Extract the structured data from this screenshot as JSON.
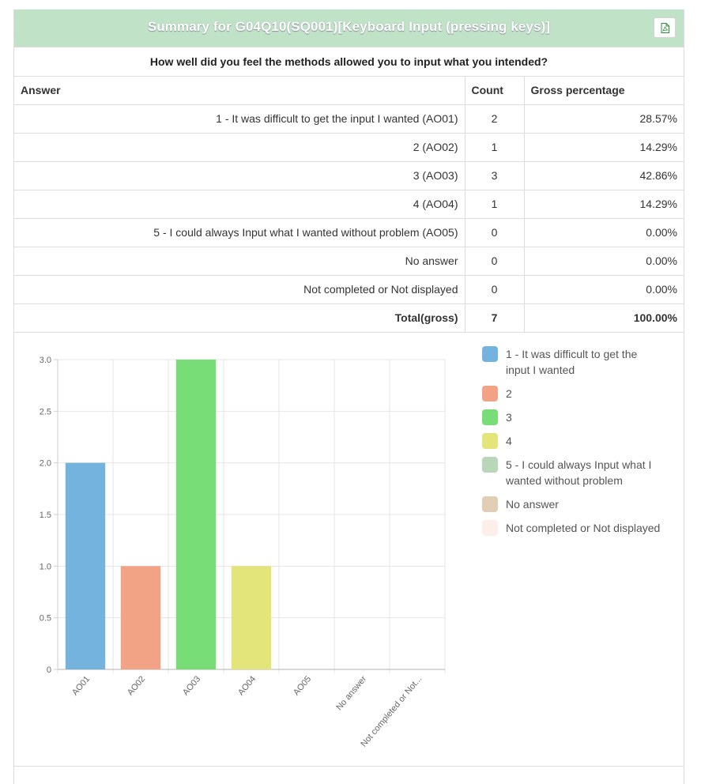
{
  "header": {
    "title": "Summary for G04Q10(SQ001)[Keyboard Input (pressing keys)]"
  },
  "question": "How well did you feel the methods allowed you to input what you intended?",
  "table": {
    "columns": [
      "Answer",
      "Count",
      "Gross percentage"
    ],
    "rows": [
      {
        "answer": "1 - It was difficult to get the input I wanted (AO01)",
        "count": "2",
        "pct": "28.57%"
      },
      {
        "answer": "2 (AO02)",
        "count": "1",
        "pct": "14.29%"
      },
      {
        "answer": "3 (AO03)",
        "count": "3",
        "pct": "42.86%"
      },
      {
        "answer": "4 (AO04)",
        "count": "1",
        "pct": "14.29%"
      },
      {
        "answer": "5 - I could always Input what I wanted without problem (AO05)",
        "count": "0",
        "pct": "0.00%"
      },
      {
        "answer": "No answer",
        "count": "0",
        "pct": "0.00%"
      },
      {
        "answer": "Not completed or Not displayed",
        "count": "0",
        "pct": "0.00%"
      }
    ],
    "total": {
      "label": "Total(gross)",
      "count": "7",
      "pct": "100.00%"
    }
  },
  "chart_data": {
    "type": "bar",
    "categories": [
      "AO01",
      "AO02",
      "AO03",
      "AO04",
      "AO05",
      "No answer",
      "Not completed or Not..."
    ],
    "values": [
      2,
      1,
      3,
      1,
      0,
      0,
      0
    ],
    "colors": [
      "#74b3de",
      "#f2a386",
      "#78dd76",
      "#e3e479",
      "#b9d6b9",
      "#e2cdb5",
      "#fcefe9"
    ],
    "ylim": [
      0,
      3
    ],
    "yticks": [
      "0",
      "0.5",
      "1.0",
      "1.5",
      "2.0",
      "2.5",
      "3.0"
    ],
    "grid": true,
    "legend_position": "right",
    "legend": [
      "1 - It was difficult to get the input I wanted",
      "2",
      "3",
      "4",
      "5 - I could always Input what I wanted without problem",
      "No answer",
      "Not completed or Not displayed"
    ]
  },
  "icons": {
    "export": "pdf-file-icon"
  }
}
